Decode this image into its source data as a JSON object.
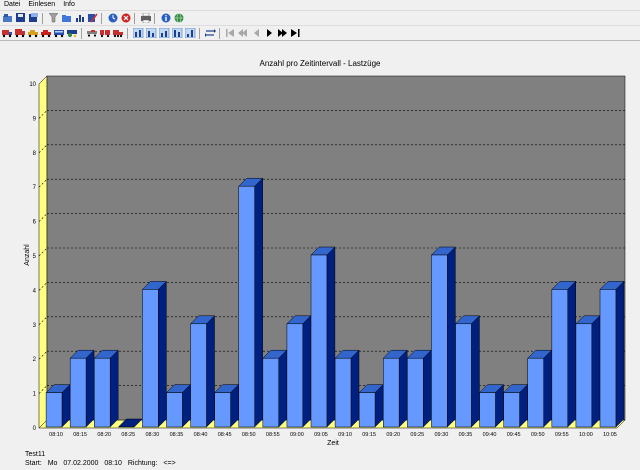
{
  "menu": [
    "Datei",
    "Einlesen",
    "Info"
  ],
  "toolbar1": {
    "icons": [
      "open-icon",
      "save-icon",
      "save-as-icon",
      "filter-icon",
      "folder-icon",
      "bar-chart-icon",
      "edit-icon",
      "clock-icon",
      "stop-icon",
      "print-icon",
      "info-icon",
      "globe-icon"
    ]
  },
  "toolbar2": {
    "icons": [
      "vehicle-icon",
      "truck-icon",
      "car-icon",
      "car-red-icon",
      "bus-icon",
      "tractor-icon",
      "trailer-icon",
      "trailer2-icon",
      "truck-trailer-icon",
      "class-1-icon",
      "class-2-icon",
      "class-3-icon",
      "class-4-icon",
      "class-5-icon",
      "swap-icon",
      "nav-first-icon",
      "nav-prev-fast-icon",
      "nav-prev-icon",
      "nav-next-icon",
      "nav-next-fast-icon",
      "nav-last-icon"
    ]
  },
  "colors": {
    "bar_front": "#6699ff",
    "bar_side": "#002080",
    "bar_top": "#3366cc",
    "plot_bg": "#808080",
    "wall": "#ffff80"
  },
  "chart_data": {
    "type": "bar",
    "title": "Anzahl pro Zeitintervall - Lastzüge",
    "xlabel": "Zeit",
    "ylabel": "Anzahl",
    "ylim": [
      0,
      10
    ],
    "yticks": [
      "0",
      "1",
      "2",
      "3",
      "4",
      "5",
      "6",
      "7",
      "8",
      "9",
      "10"
    ],
    "grid": true,
    "categories": [
      "08:10",
      "08:15",
      "08:20",
      "08:25",
      "08:30",
      "08:35",
      "08:40",
      "08:45",
      "08:50",
      "08:55",
      "09:00",
      "09:05",
      "09:10",
      "09:15",
      "09:20",
      "09:25",
      "09:30",
      "09:35",
      "09:40",
      "09:45",
      "09:50",
      "09:55",
      "10:00",
      "10:05"
    ],
    "values": [
      1,
      2,
      2,
      0,
      4,
      1,
      3,
      1,
      7,
      2,
      3,
      5,
      2,
      1,
      2,
      2,
      5,
      3,
      1,
      1,
      2,
      4,
      3,
      4
    ]
  },
  "status": {
    "name": "Test11",
    "start_label": "Start:",
    "day": "Mo",
    "date": "07.02.2000",
    "time": "08:10",
    "direction_label": "Richtung:",
    "direction": "<=>"
  }
}
